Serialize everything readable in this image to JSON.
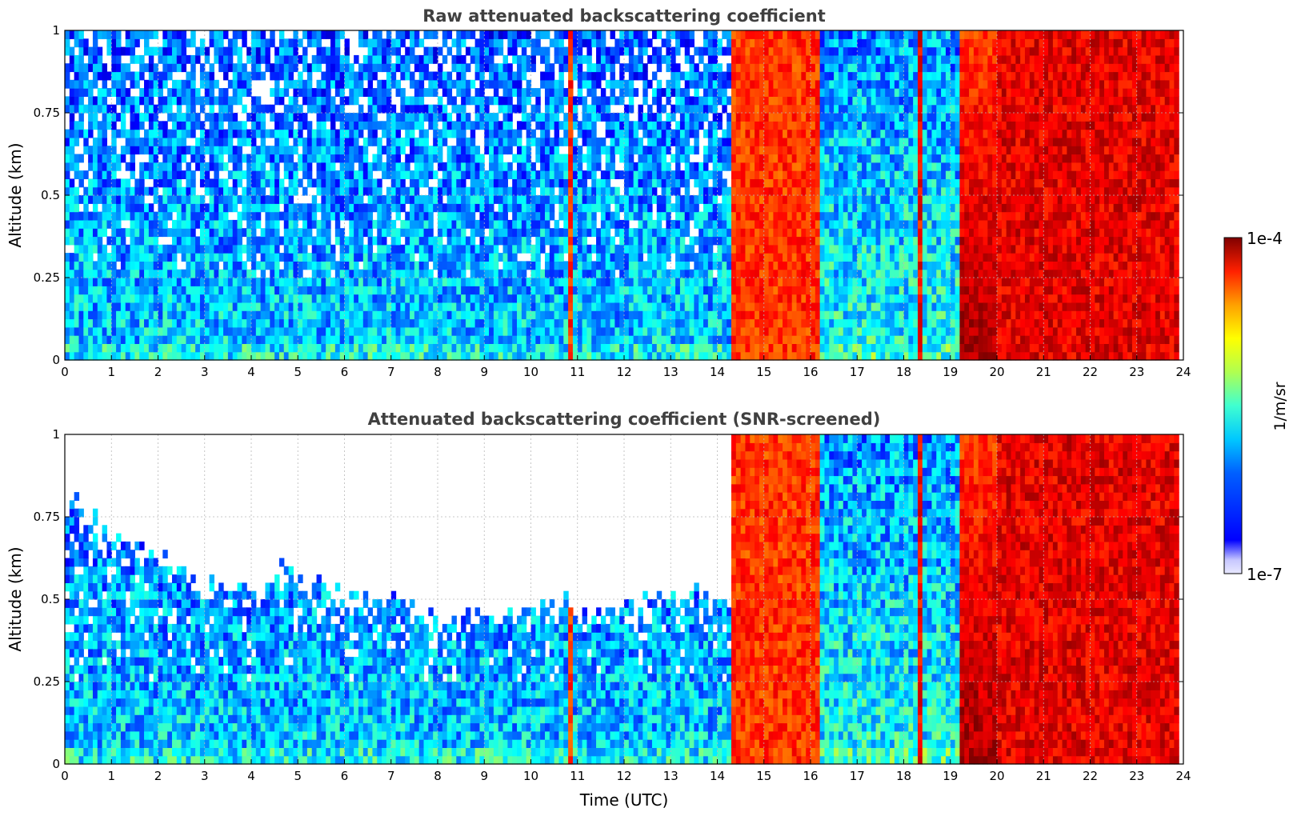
{
  "chart_data": [
    {
      "type": "heatmap",
      "title": "Raw attenuated backscattering coefficient",
      "ylabel": "Altitude (km)",
      "xlabel": "",
      "xlim": [
        0,
        24
      ],
      "ylim": [
        0,
        1
      ],
      "x_ticks": [
        "0",
        "1",
        "2",
        "3",
        "4",
        "5",
        "6",
        "7",
        "8",
        "9",
        "10",
        "11",
        "12",
        "13",
        "14",
        "15",
        "16",
        "17",
        "18",
        "19",
        "20",
        "21",
        "22",
        "23",
        "24"
      ],
      "y_ticks": [
        "0",
        "0.25",
        "0.5",
        "0.75",
        "1"
      ],
      "grid": true,
      "screened": false,
      "segments": [
        {
          "t0": 0.0,
          "t1": 10.8,
          "regime": "clear air noisy",
          "value": "1e-6"
        },
        {
          "t0": 10.8,
          "t1": 10.9,
          "regime": "thin vertical streak",
          "value": "3e-5"
        },
        {
          "t0": 10.9,
          "t1": 14.3,
          "regime": "clear air noisy",
          "value": "1e-6"
        },
        {
          "t0": 14.3,
          "t1": 16.2,
          "regime": "precipitation",
          "value": "3e-5"
        },
        {
          "t0": 16.2,
          "t1": 18.3,
          "regime": "clear air",
          "value": "1.5e-6"
        },
        {
          "t0": 18.3,
          "t1": 18.4,
          "regime": "precipitation streak",
          "value": "4e-5"
        },
        {
          "t0": 18.4,
          "t1": 19.2,
          "regime": "clear air",
          "value": "1.5e-6"
        },
        {
          "t0": 19.2,
          "t1": 20.0,
          "regime": "strong backscatter",
          "value": "8e-5"
        },
        {
          "t0": 20.0,
          "t1": 23.9,
          "regime": "precipitation",
          "value": "5e-5"
        }
      ]
    },
    {
      "type": "heatmap",
      "title": "Attenuated backscattering coefficient (SNR-screened)",
      "ylabel": "Altitude (km)",
      "xlabel": "Time (UTC)",
      "xlim": [
        0,
        24
      ],
      "ylim": [
        0,
        1
      ],
      "x_ticks": [
        "0",
        "1",
        "2",
        "3",
        "4",
        "5",
        "6",
        "7",
        "8",
        "9",
        "10",
        "11",
        "12",
        "13",
        "14",
        "15",
        "16",
        "17",
        "18",
        "19",
        "20",
        "21",
        "22",
        "23",
        "24"
      ],
      "y_ticks": [
        "0",
        "0.25",
        "0.5",
        "0.75",
        "1"
      ],
      "grid": true,
      "screened": true,
      "screen_top_km": [
        {
          "t": 0,
          "alt": 0.82
        },
        {
          "t": 1,
          "alt": 0.68
        },
        {
          "t": 2,
          "alt": 0.62
        },
        {
          "t": 3,
          "alt": 0.55
        },
        {
          "t": 4,
          "alt": 0.52
        },
        {
          "t": 5,
          "alt": 0.6
        },
        {
          "t": 6,
          "alt": 0.5
        },
        {
          "t": 7,
          "alt": 0.48
        },
        {
          "t": 8,
          "alt": 0.42
        },
        {
          "t": 9,
          "alt": 0.44
        },
        {
          "t": 10,
          "alt": 0.46
        },
        {
          "t": 10.8,
          "alt": 0.47
        },
        {
          "t": 12,
          "alt": 0.47
        },
        {
          "t": 13,
          "alt": 0.5
        },
        {
          "t": 14.3,
          "alt": 0.5
        }
      ]
    }
  ],
  "colorbar": {
    "min_label": "1e-7",
    "max_label": "1e-4",
    "unit": "1/m/sr",
    "colormap": "jet"
  }
}
